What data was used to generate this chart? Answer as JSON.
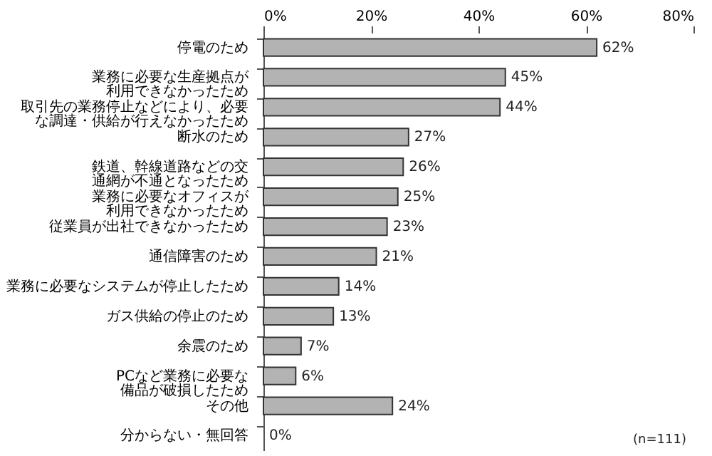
{
  "chart_data": {
    "type": "bar",
    "orientation": "horizontal",
    "categories": [
      "停電のため",
      "業務に必要な生産拠点が利用できなかったため",
      "取引先の業務停止などにより、必要な調達・供給が行えなかったため",
      "断水のため",
      "鉄道、幹線道路などの交通網が不通となったため",
      "業務に必要なオフィスが利用できなかったため",
      "従業員が出社できなかったため",
      "通信障害のため",
      "業務に必要なシステムが停止したため",
      "ガス供給の停止のため",
      "余震のため",
      "PCなど業務に必要な備品が破損したため",
      "その他",
      "分からない・無回答"
    ],
    "values": [
      62,
      45,
      44,
      27,
      26,
      25,
      23,
      21,
      14,
      13,
      7,
      6,
      24,
      0
    ],
    "value_labels": [
      "62%",
      "45%",
      "44%",
      "27%",
      "26%",
      "25%",
      "23%",
      "21%",
      "14%",
      "13%",
      "7%",
      "6%",
      "24%",
      "0%"
    ],
    "color": "#b3b3b3",
    "xlim": [
      0,
      80
    ],
    "xticks": [
      {
        "value": 0,
        "label": "0%"
      },
      {
        "value": 20,
        "label": "20%"
      },
      {
        "value": 40,
        "label": "40%"
      },
      {
        "value": 60,
        "label": "60%"
      },
      {
        "value": 80,
        "label": "80%"
      }
    ],
    "grid": false,
    "annotations": [
      "(n=111)"
    ]
  }
}
